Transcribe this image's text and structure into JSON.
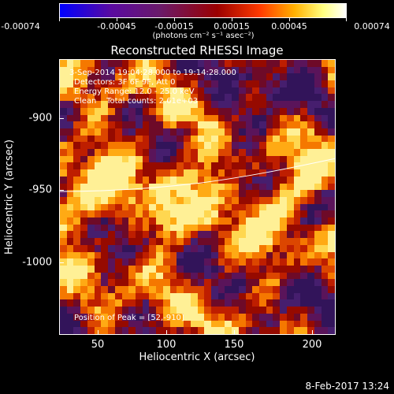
{
  "colorbar": {
    "ticks": [
      "-0.00074",
      "-0.00045",
      "-0.00015",
      "0.00015",
      "0.00045",
      "0.00074"
    ],
    "units": "(photons cm⁻² s⁻¹ asec⁻²)"
  },
  "title": "Reconstructed RHESSI Image",
  "overlay": {
    "time_range": "3-Sep-2014 19:04:28.000 to 19:14:28.000",
    "detectors": "Detectors: 3F 6F 9F, Att 0",
    "energy_range": "Energy Range: 12.0 - 25.0 keV",
    "clean_counts": "Clean    Total counts: 2.61e+03",
    "peak": "Position of Peak = [52,-910]"
  },
  "axes": {
    "ylabel": "Heliocentric Y (arcsec)",
    "xlabel": "Heliocentric X (arcsec)",
    "yticks": [
      "-900",
      "-950",
      "-1000"
    ],
    "xticks": [
      "50",
      "100",
      "150",
      "200"
    ]
  },
  "timestamp": "8-Feb-2017 13:24"
}
